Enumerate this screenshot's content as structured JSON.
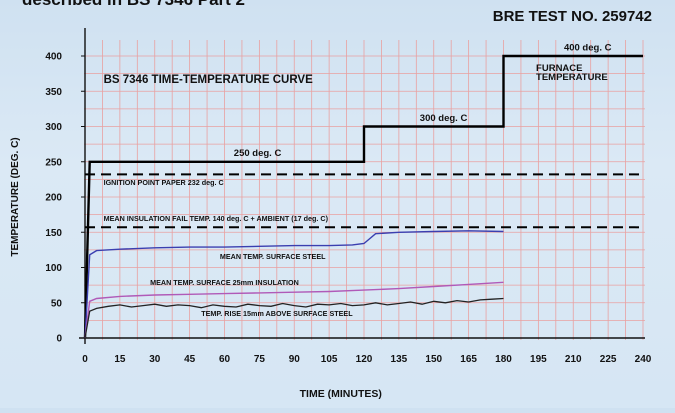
{
  "header": {
    "title_fragment": "described in BS 7346 Part 2",
    "test_number": "BRE TEST NO. 259742"
  },
  "colors": {
    "grid": "#e9a0a0",
    "furnace": "#000000",
    "reference": "#000000",
    "steel": "#3b3fb0",
    "insulation_surface": "#b05ab8",
    "rise_above_steel": "#222222"
  },
  "chart_data": {
    "type": "line",
    "title": "BS 7346 TIME-TEMPERATURE CURVE",
    "xlabel": "TIME (MINUTES)",
    "ylabel": "TEMPERATURE (DEG. C)",
    "xlim": [
      0,
      240
    ],
    "ylim": [
      0,
      400
    ],
    "x_ticks": [
      0,
      15,
      30,
      45,
      60,
      75,
      90,
      105,
      120,
      135,
      150,
      165,
      180,
      195,
      210,
      225,
      240
    ],
    "y_ticks": [
      0,
      50,
      100,
      150,
      200,
      250,
      300,
      350,
      400
    ],
    "grid": true,
    "series": [
      {
        "name": "FURNACE TEMPERATURE",
        "style": "solid-thick",
        "x": [
          0,
          2,
          120,
          120,
          180,
          180,
          240
        ],
        "y": [
          0,
          250,
          250,
          300,
          300,
          400,
          400
        ]
      },
      {
        "name": "",
        "style": "dashed",
        "x": [
          0,
          240
        ],
        "y": [
          232,
          232
        ]
      },
      {
        "name": "",
        "style": "dashed",
        "x": [
          0,
          240
        ],
        "y": [
          157,
          157
        ]
      },
      {
        "name": "",
        "style": "thin",
        "x": [
          0,
          2,
          5,
          15,
          30,
          45,
          60,
          75,
          90,
          105,
          115,
          120,
          125,
          135,
          150,
          165,
          180
        ],
        "y": [
          0,
          118,
          124,
          126,
          128,
          129,
          129,
          130,
          131,
          131,
          132,
          134,
          148,
          150,
          151,
          152,
          151
        ]
      },
      {
        "name": "",
        "style": "thin",
        "x": [
          0,
          2,
          5,
          15,
          30,
          45,
          60,
          75,
          90,
          105,
          120,
          135,
          150,
          165,
          180
        ],
        "y": [
          0,
          52,
          56,
          59,
          61,
          62,
          63,
          64,
          65,
          66,
          68,
          70,
          73,
          76,
          79
        ]
      },
      {
        "name": "",
        "style": "thin-noisy",
        "x": [
          0,
          2,
          5,
          10,
          15,
          20,
          25,
          30,
          35,
          40,
          45,
          50,
          55,
          60,
          65,
          70,
          75,
          80,
          85,
          90,
          95,
          100,
          105,
          110,
          115,
          120,
          125,
          130,
          135,
          140,
          145,
          150,
          155,
          160,
          165,
          170,
          175,
          180
        ],
        "y": [
          0,
          38,
          42,
          45,
          47,
          44,
          46,
          48,
          45,
          47,
          46,
          43,
          47,
          45,
          44,
          48,
          46,
          45,
          49,
          46,
          44,
          48,
          47,
          49,
          46,
          47,
          50,
          47,
          49,
          51,
          48,
          52,
          50,
          53,
          51,
          54,
          55,
          56
        ]
      }
    ],
    "annotations": [
      {
        "text": "250 deg. C",
        "x": 64,
        "y": 258
      },
      {
        "text": "300 deg. C",
        "x": 144,
        "y": 308
      },
      {
        "text": "400 deg. C",
        "x": 206,
        "y": 408
      },
      {
        "text": "FURNACE",
        "x": 194,
        "y": 379
      },
      {
        "text": "TEMPERATURE",
        "x": 194,
        "y": 366
      },
      {
        "text": "IGNITION POINT PAPER 232 deg. C",
        "x": 8,
        "y": 217
      },
      {
        "text": "MEAN INSULATION FAIL TEMP. 140 deg. C + AMBIENT (17 deg. C)",
        "x": 8,
        "y": 166
      },
      {
        "text": "MEAN TEMP. SURFACE STEEL",
        "x": 58,
        "y": 112
      },
      {
        "text": "MEAN TEMP. SURFACE 25mm INSULATION",
        "x": 28,
        "y": 75
      },
      {
        "text": "TEMP. RISE 15mm ABOVE SURFACE STEEL",
        "x": 50,
        "y": 31
      }
    ]
  }
}
